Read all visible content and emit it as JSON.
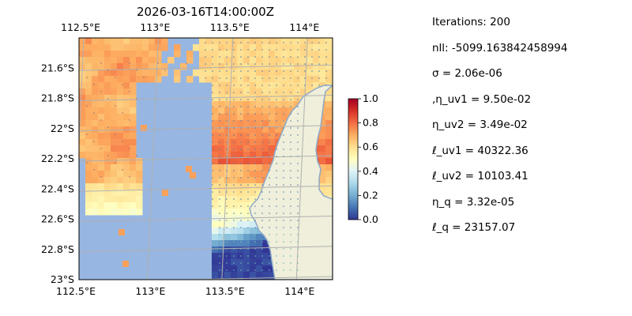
{
  "chart_data": {
    "type": "heatmap",
    "title": "2026-03-16T14:00:00Z",
    "x_ticks": [
      {
        "value": 112.5,
        "label": "112.5°E"
      },
      {
        "value": 113.0,
        "label": "113°E"
      },
      {
        "value": 113.5,
        "label": "113.5°E"
      },
      {
        "value": 114.0,
        "label": "114°E"
      }
    ],
    "y_ticks": [
      {
        "value": -21.6,
        "label": "21.6°S"
      },
      {
        "value": -21.8,
        "label": "21.8°S"
      },
      {
        "value": -22.0,
        "label": "22°S"
      },
      {
        "value": -22.2,
        "label": "22.2°S"
      },
      {
        "value": -22.4,
        "label": "22.4°S"
      },
      {
        "value": -22.6,
        "label": "22.6°S"
      },
      {
        "value": -22.8,
        "label": "22.8°S"
      },
      {
        "value": -23.0,
        "label": "23°S"
      }
    ],
    "xlim": [
      112.5,
      114.2
    ],
    "ylim": [
      -23.0,
      -21.4
    ],
    "colorbar": {
      "range": [
        0.0,
        1.0
      ],
      "ticks": [
        "0.0",
        "0.2",
        "0.4",
        "0.6",
        "0.8",
        "1.0"
      ],
      "colormap": "RdYlBu_r"
    },
    "ocean_color": "#97b6e1",
    "land_color": "#efefdb",
    "grid": true
  },
  "params": [
    "Iterations: 200",
    "nll: -5099.163842458994",
    "σ = 2.06e-06",
    ",η_uv1 = 9.50e-02",
    "η_uv2 = 3.49e-02",
    "ℓ_uv1 = 40322.36",
    "ℓ_uv2 = 10103.41",
    "η_q = 3.32e-05",
    "ℓ_q = 23157.07"
  ]
}
